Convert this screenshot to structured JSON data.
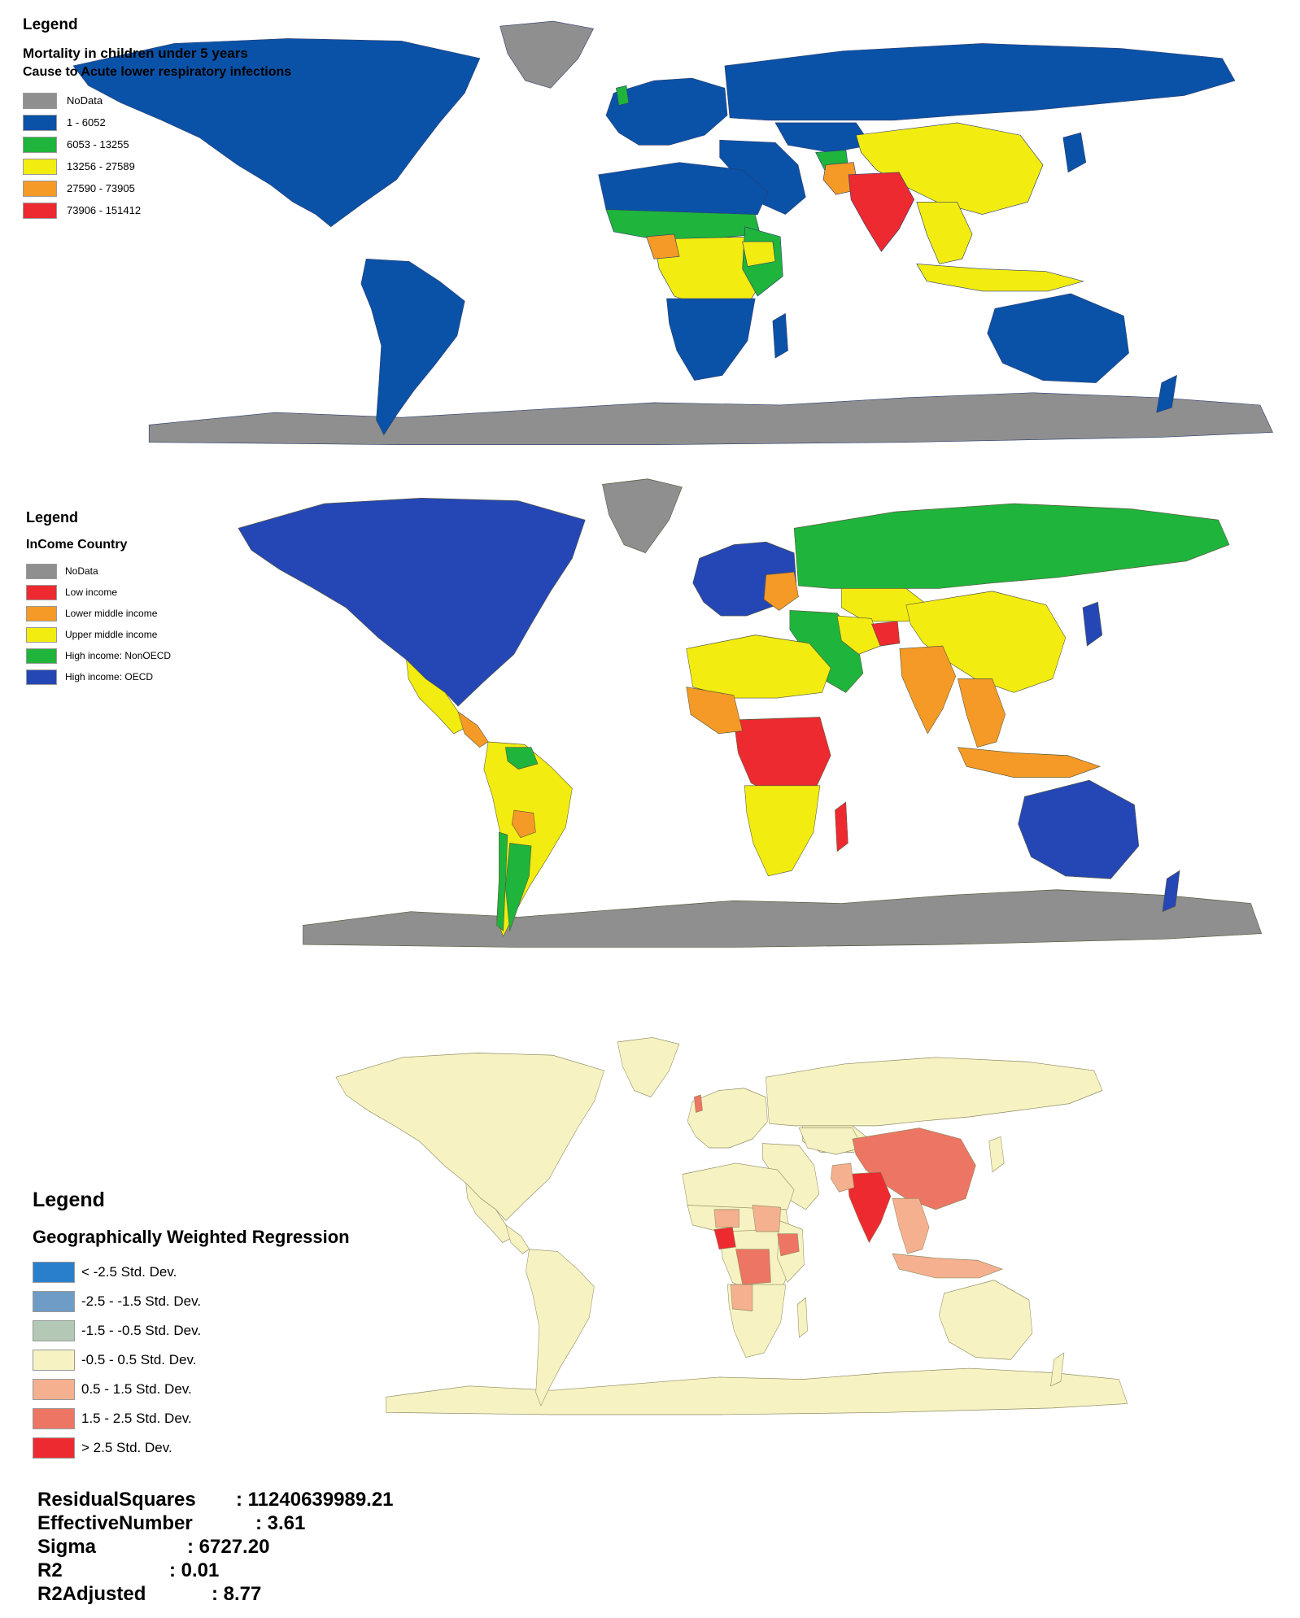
{
  "legend_mortality": {
    "title": "Legend",
    "subtitle": "Mortality in children under 5 years",
    "subtitle2": "Cause to Acute lower respiratory infections",
    "items": [
      {
        "label": "NoData",
        "color": "#8f8f8f"
      },
      {
        "label": "1 - 6052",
        "color": "#0a52a8"
      },
      {
        "label": "6053 - 13255",
        "color": "#1fb43c"
      },
      {
        "label": "13256 - 27589",
        "color": "#f2ec10"
      },
      {
        "label": "27590 - 73905",
        "color": "#f59a26"
      },
      {
        "label": "73906 - 151412",
        "color": "#ec2a30"
      }
    ]
  },
  "legend_income": {
    "title": "Legend",
    "subtitle": "InCome Country",
    "items": [
      {
        "label": "NoData",
        "color": "#8f8f8f"
      },
      {
        "label": "Low income",
        "color": "#ec2a30"
      },
      {
        "label": "Lower middle income",
        "color": "#f59a26"
      },
      {
        "label": "Upper middle income",
        "color": "#f2ec10"
      },
      {
        "label": "High income: NonOECD",
        "color": "#1fb43c"
      },
      {
        "label": "High income: OECD",
        "color": "#2547b5"
      }
    ]
  },
  "legend_gwr": {
    "title": "Legend",
    "subtitle": "Geographically Weighted Regression",
    "items": [
      {
        "label": "< -2.5 Std. Dev.",
        "color": "#2a7fcc"
      },
      {
        "label": "-2.5 - -1.5 Std. Dev.",
        "color": "#6e9cc6"
      },
      {
        "label": "-1.5 - -0.5 Std. Dev.",
        "color": "#b3c9b6"
      },
      {
        "label": "-0.5 - 0.5 Std. Dev.",
        "color": "#f7f2c2"
      },
      {
        "label": "0.5 - 1.5 Std. Dev.",
        "color": "#f5b08f"
      },
      {
        "label": "1.5 - 2.5 Std. Dev.",
        "color": "#ec7563"
      },
      {
        "label": "> 2.5 Std. Dev.",
        "color": "#ec2a30"
      }
    ]
  },
  "stats": [
    {
      "label": "ResidualSquares",
      "value": ": 11240639989.21"
    },
    {
      "label": "EffectiveNumber",
      "value": ": 3.61"
    },
    {
      "label": "Sigma",
      "value": ": 6727.20"
    },
    {
      "label": "R2",
      "value": ": 0.01"
    },
    {
      "label": "R2Adjusted",
      "value": ": 8.77"
    }
  ],
  "maps": {
    "mortality": {
      "ocean": "#ffffff",
      "antarctica": "#8f8f8f",
      "greenland": "#8f8f8f",
      "north_america": "#0a52a8",
      "south_america": "#0a52a8",
      "europe": "#0a52a8",
      "russia": "#0a52a8",
      "middle_east": "#0a52a8",
      "central_asia": "#0a52a8",
      "china": "#f2ec10",
      "india": "#ec2a30",
      "southeast_asia": "#f2ec10",
      "indonesia": "#f2ec10",
      "australia": "#0a52a8",
      "africa_north": "#0a52a8",
      "africa_sahel": "#1fb43c",
      "africa_central": "#f2ec10",
      "africa_east": "#1fb43c",
      "africa_south": "#0a52a8",
      "nigeria": "#f59a26",
      "ethiopia": "#f2ec10",
      "pakistan": "#f59a26",
      "afghanistan": "#1fb43c",
      "madagascar": "#0a52a8",
      "uk": "#1fb43c",
      "japan": "#0a52a8",
      "new_zealand": "#0a52a8"
    },
    "income": {
      "ocean": "#ffffff",
      "antarctica": "#8f8f8f",
      "greenland": "#8f8f8f",
      "north_america": "#2547b5",
      "mexico": "#f2ec10",
      "central_america": "#f59a26",
      "south_america": "#f2ec10",
      "bolivia": "#f59a26",
      "chile": "#1fb43c",
      "argentina": "#1fb43c",
      "venezuela": "#1fb43c",
      "europe": "#2547b5",
      "eastern_europe": "#f59a26",
      "russia": "#1fb43c",
      "kazakhstan": "#f2ec10",
      "china": "#f2ec10",
      "middle_east": "#1fb43c",
      "iran": "#f2ec10",
      "afghanistan": "#ec2a30",
      "india": "#f59a26",
      "southeast_asia": "#f59a26",
      "indonesia": "#f59a26",
      "japan": "#2547b5",
      "australia": "#2547b5",
      "new_zealand": "#2547b5",
      "africa_north": "#f2ec10",
      "africa_central": "#ec2a30",
      "africa_west": "#f59a26",
      "africa_south": "#f2ec10",
      "madagascar": "#ec2a30"
    },
    "gwr": {
      "ocean": "#ffffff",
      "land": "#f7f2c2",
      "border": "#8c8a60",
      "uk": "#ec7563",
      "china": "#ec7563",
      "india": "#ec2a30",
      "pakistan": "#f5b08f",
      "nigeria": "#ec2a30",
      "niger": "#f5b08f",
      "sudan": "#f5b08f",
      "ethiopia": "#ec7563",
      "drc": "#ec7563",
      "angola": "#f5b08f",
      "southeast_asia": "#f5b08f",
      "indonesia": "#f5b08f"
    }
  }
}
